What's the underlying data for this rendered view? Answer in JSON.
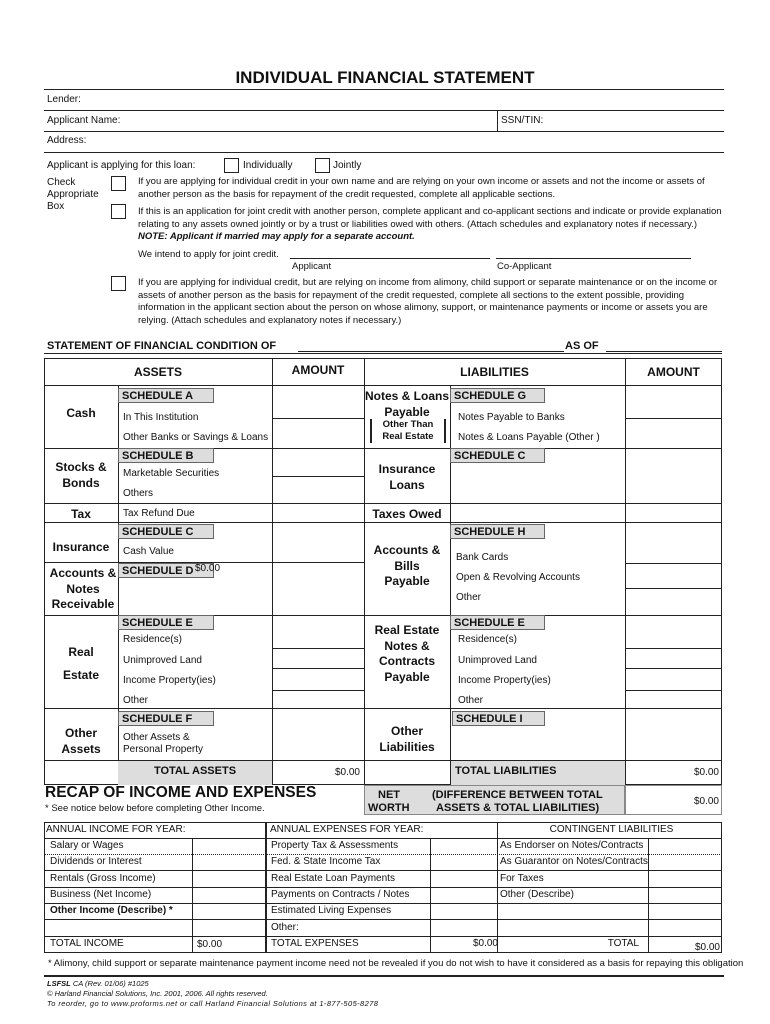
{
  "title": "INDIVIDUAL FINANCIAL STATEMENT",
  "header": {
    "lender": "Lender:",
    "applicant_name": "Applicant Name:",
    "ssn": "SSN/TIN:",
    "address": "Address:"
  },
  "loan": {
    "prompt": "Applicant is applying for this loan:",
    "individually": "Individually",
    "jointly": "Jointly"
  },
  "check_label": [
    "Check",
    "Appropriate",
    "Box"
  ],
  "options": {
    "individual": "If you are applying for individual credit in your own name and are relying on your own income or assets and not the income or assets of another person as the basis for repayment of the credit requested, complete all applicable sections.",
    "joint": "If this is an application for joint credit with another person, complete applicant and co-applicant sections and  indicate or provide explanation relating to any assets owned jointly or by a trust or liabilities owed with others.  (Attach schedules and explanatory notes if necessary.) ",
    "joint_note": "NOTE:  Applicant if married may apply for a separate account.",
    "other": "If you are applying for individual credit, but are relying on income from alimony, child support or separate maintenance or on the income or assets of another person as the basis for repayment of the credit requested, complete all sections to the extent possible, providing information in the applicant section about the person on whose alimony, support, or maintenance payments or income or assets you are relying.  (Attach schedules and explanatory notes if necessary.)"
  },
  "joint": {
    "intend": "We intend to apply for joint credit.",
    "applicant": "Applicant",
    "co_applicant": "Co-Applicant"
  },
  "statement": {
    "label": "STATEMENT OF FINANCIAL CONDITION OF",
    "as_of": "AS OF"
  },
  "table": {
    "assets": "ASSETS",
    "amount": "AMOUNT",
    "liabilities": "LIABILITIES",
    "left": {
      "cash": "Cash",
      "sch_a": "SCHEDULE A",
      "in_inst": "In This Institution",
      "other_banks": "Other Banks or Savings & Loans",
      "stocks": "Stocks & Bonds",
      "sch_b": "SCHEDULE B",
      "marketable": "Marketable Securities",
      "others": "Others",
      "tax": "Tax",
      "tax_refund": "Tax Refund Due",
      "insurance": "Insurance",
      "sch_c": "SCHEDULE C",
      "cash_value": "Cash Value",
      "accounts": "Accounts & Notes Receivable",
      "sch_d": "SCHEDULE D",
      "sch_d_value": "$0.00",
      "real_estate": "Real Estate",
      "sch_e": "SCHEDULE E",
      "residence": "Residence(s)",
      "unimproved": "Unimproved Land",
      "income_prop": "Income Property(ies)",
      "other": "Other",
      "other_assets": "Other Assets",
      "sch_f": "SCHEDULE F",
      "other_assets_1": "Other Assets &",
      "other_assets_2": "Personal Property",
      "total": "TOTAL ASSETS",
      "total_value": "$0.00"
    },
    "right": {
      "notes_loans": "Notes & Loans",
      "payable": "Payable",
      "other_than": "Other Than",
      "real_estate_b": "Real Estate",
      "sch_g": "SCHEDULE G",
      "notes_banks": "Notes Payable to Banks",
      "notes_other": "Notes & Loans Payable (Other )",
      "ins_loans": "Insurance Loans",
      "sch_c": "SCHEDULE C",
      "taxes_owed": "Taxes Owed",
      "accounts_bills": "Accounts & Bills Payable",
      "sch_h": "SCHEDULE H",
      "bank_cards": "Bank Cards",
      "revolving": "Open & Revolving Accounts",
      "other": "Other",
      "re_notes": "Real Estate Notes & Contracts Payable",
      "sch_e": "SCHEDULE E",
      "residence": "Residence(s)",
      "unimproved": "Unimproved Land",
      "income_prop": "Income Property(ies)",
      "other2": "Other",
      "other_liab": "Other Liabilities",
      "sch_i": "SCHEDULE I",
      "total": "TOTAL LIABILITIES",
      "total_value": "$0.00"
    },
    "net_worth": {
      "label1": "NET",
      "label2": "WORTH",
      "desc1": "(DIFFERENCE BETWEEN TOTAL",
      "desc2": "ASSETS & TOTAL LIABILITIES)",
      "value": "$0.00"
    }
  },
  "recap": {
    "title": "RECAP OF INCOME AND EXPENSES",
    "note": "* See notice below before completing Other Income."
  },
  "income": {
    "header": "ANNUAL INCOME FOR YEAR:",
    "rows": [
      "Salary or Wages",
      "Dividends or Interest",
      "Rentals (Gross Income)",
      "Business (Net Income)",
      "Other Income (Describe) *",
      ""
    ],
    "total": "TOTAL INCOME",
    "total_value": "$0.00"
  },
  "expenses": {
    "header": "ANNUAL EXPENSES  FOR YEAR:",
    "rows": [
      "Property Tax & Assessments",
      "Fed. & State Income Tax",
      "Real Estate Loan Payments",
      "Payments on Contracts / Notes",
      "Estimated Living Expenses",
      "Other:"
    ],
    "total": "TOTAL EXPENSES",
    "total_value": "$0.00"
  },
  "contingent": {
    "header": "CONTINGENT LIABILITIES",
    "rows": [
      "As Endorser on Notes/Contracts",
      "As Guarantor on Notes/Contracts",
      "For Taxes",
      "Other  (Describe)",
      "",
      ""
    ],
    "total": "TOTAL",
    "total_value": "$0.00"
  },
  "footnote": "* Alimony, child support or separate maintenance payment income need not be revealed if you do not wish to have it considered as a basis for repaying this obligation",
  "footer": {
    "form_id": "LSFSL",
    "form_rev": " CA (Rev. 01/06) #1025",
    "copyright": "© Harland Financial Solutions, Inc. 2001, 2006.  All rights reserved.",
    "reorder": "To reorder, go to www.proforms.net or call Harland Financial Solutions at 1-877-505-8278"
  }
}
